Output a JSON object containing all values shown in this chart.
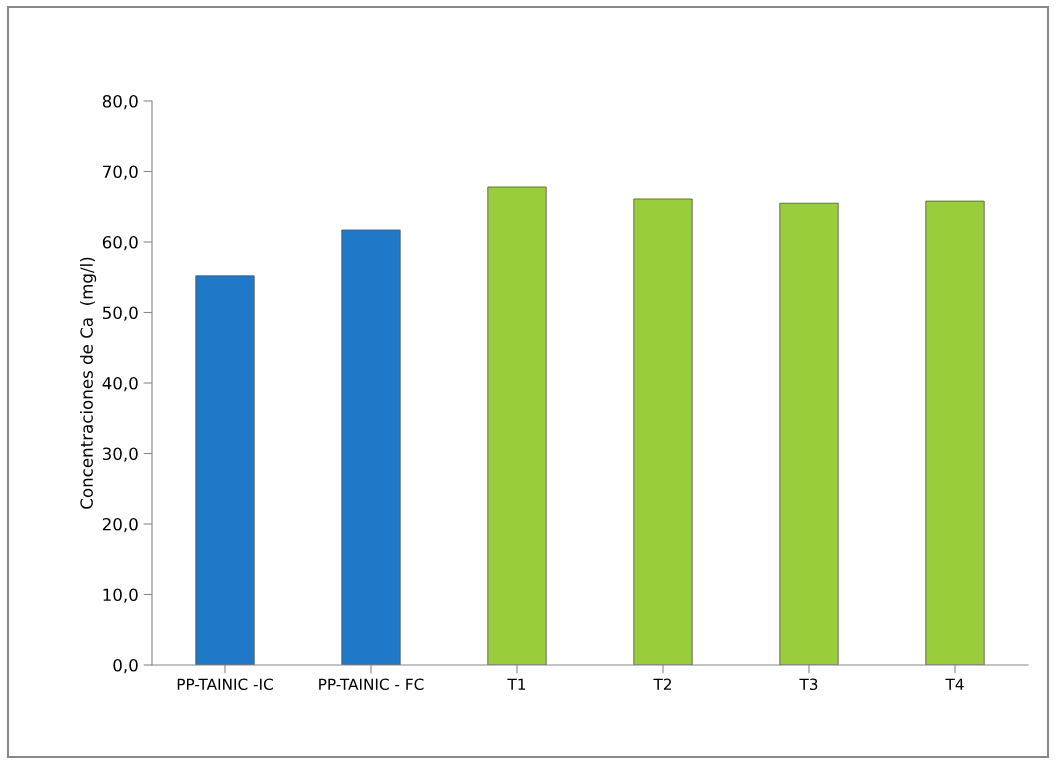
{
  "chart_data": {
    "type": "bar",
    "ylabel": "Concentraciones de Ca  (mg/l)",
    "categories": [
      "PP-TAINIC -IC",
      "PP-TAINIC - FC",
      "T1",
      "T2",
      "T3",
      "T4"
    ],
    "values": [
      55.2,
      61.7,
      67.8,
      66.1,
      65.5,
      65.8
    ],
    "colors": [
      "#1f78c8",
      "#1f78c8",
      "#9acd3c",
      "#9acd3c",
      "#9acd3c",
      "#9acd3c"
    ],
    "ylim": [
      0,
      80
    ],
    "yticks": [
      {
        "value": 0,
        "label": "0,0"
      },
      {
        "value": 10,
        "label": "10,0"
      },
      {
        "value": 20,
        "label": "20,0"
      },
      {
        "value": 30,
        "label": "30,0"
      },
      {
        "value": 40,
        "label": "40,0"
      },
      {
        "value": 50,
        "label": "50,0"
      },
      {
        "value": 60,
        "label": "60,0"
      },
      {
        "value": 70,
        "label": "70,0"
      },
      {
        "value": 80,
        "label": "80,0"
      }
    ],
    "grid": false,
    "legend": false
  }
}
